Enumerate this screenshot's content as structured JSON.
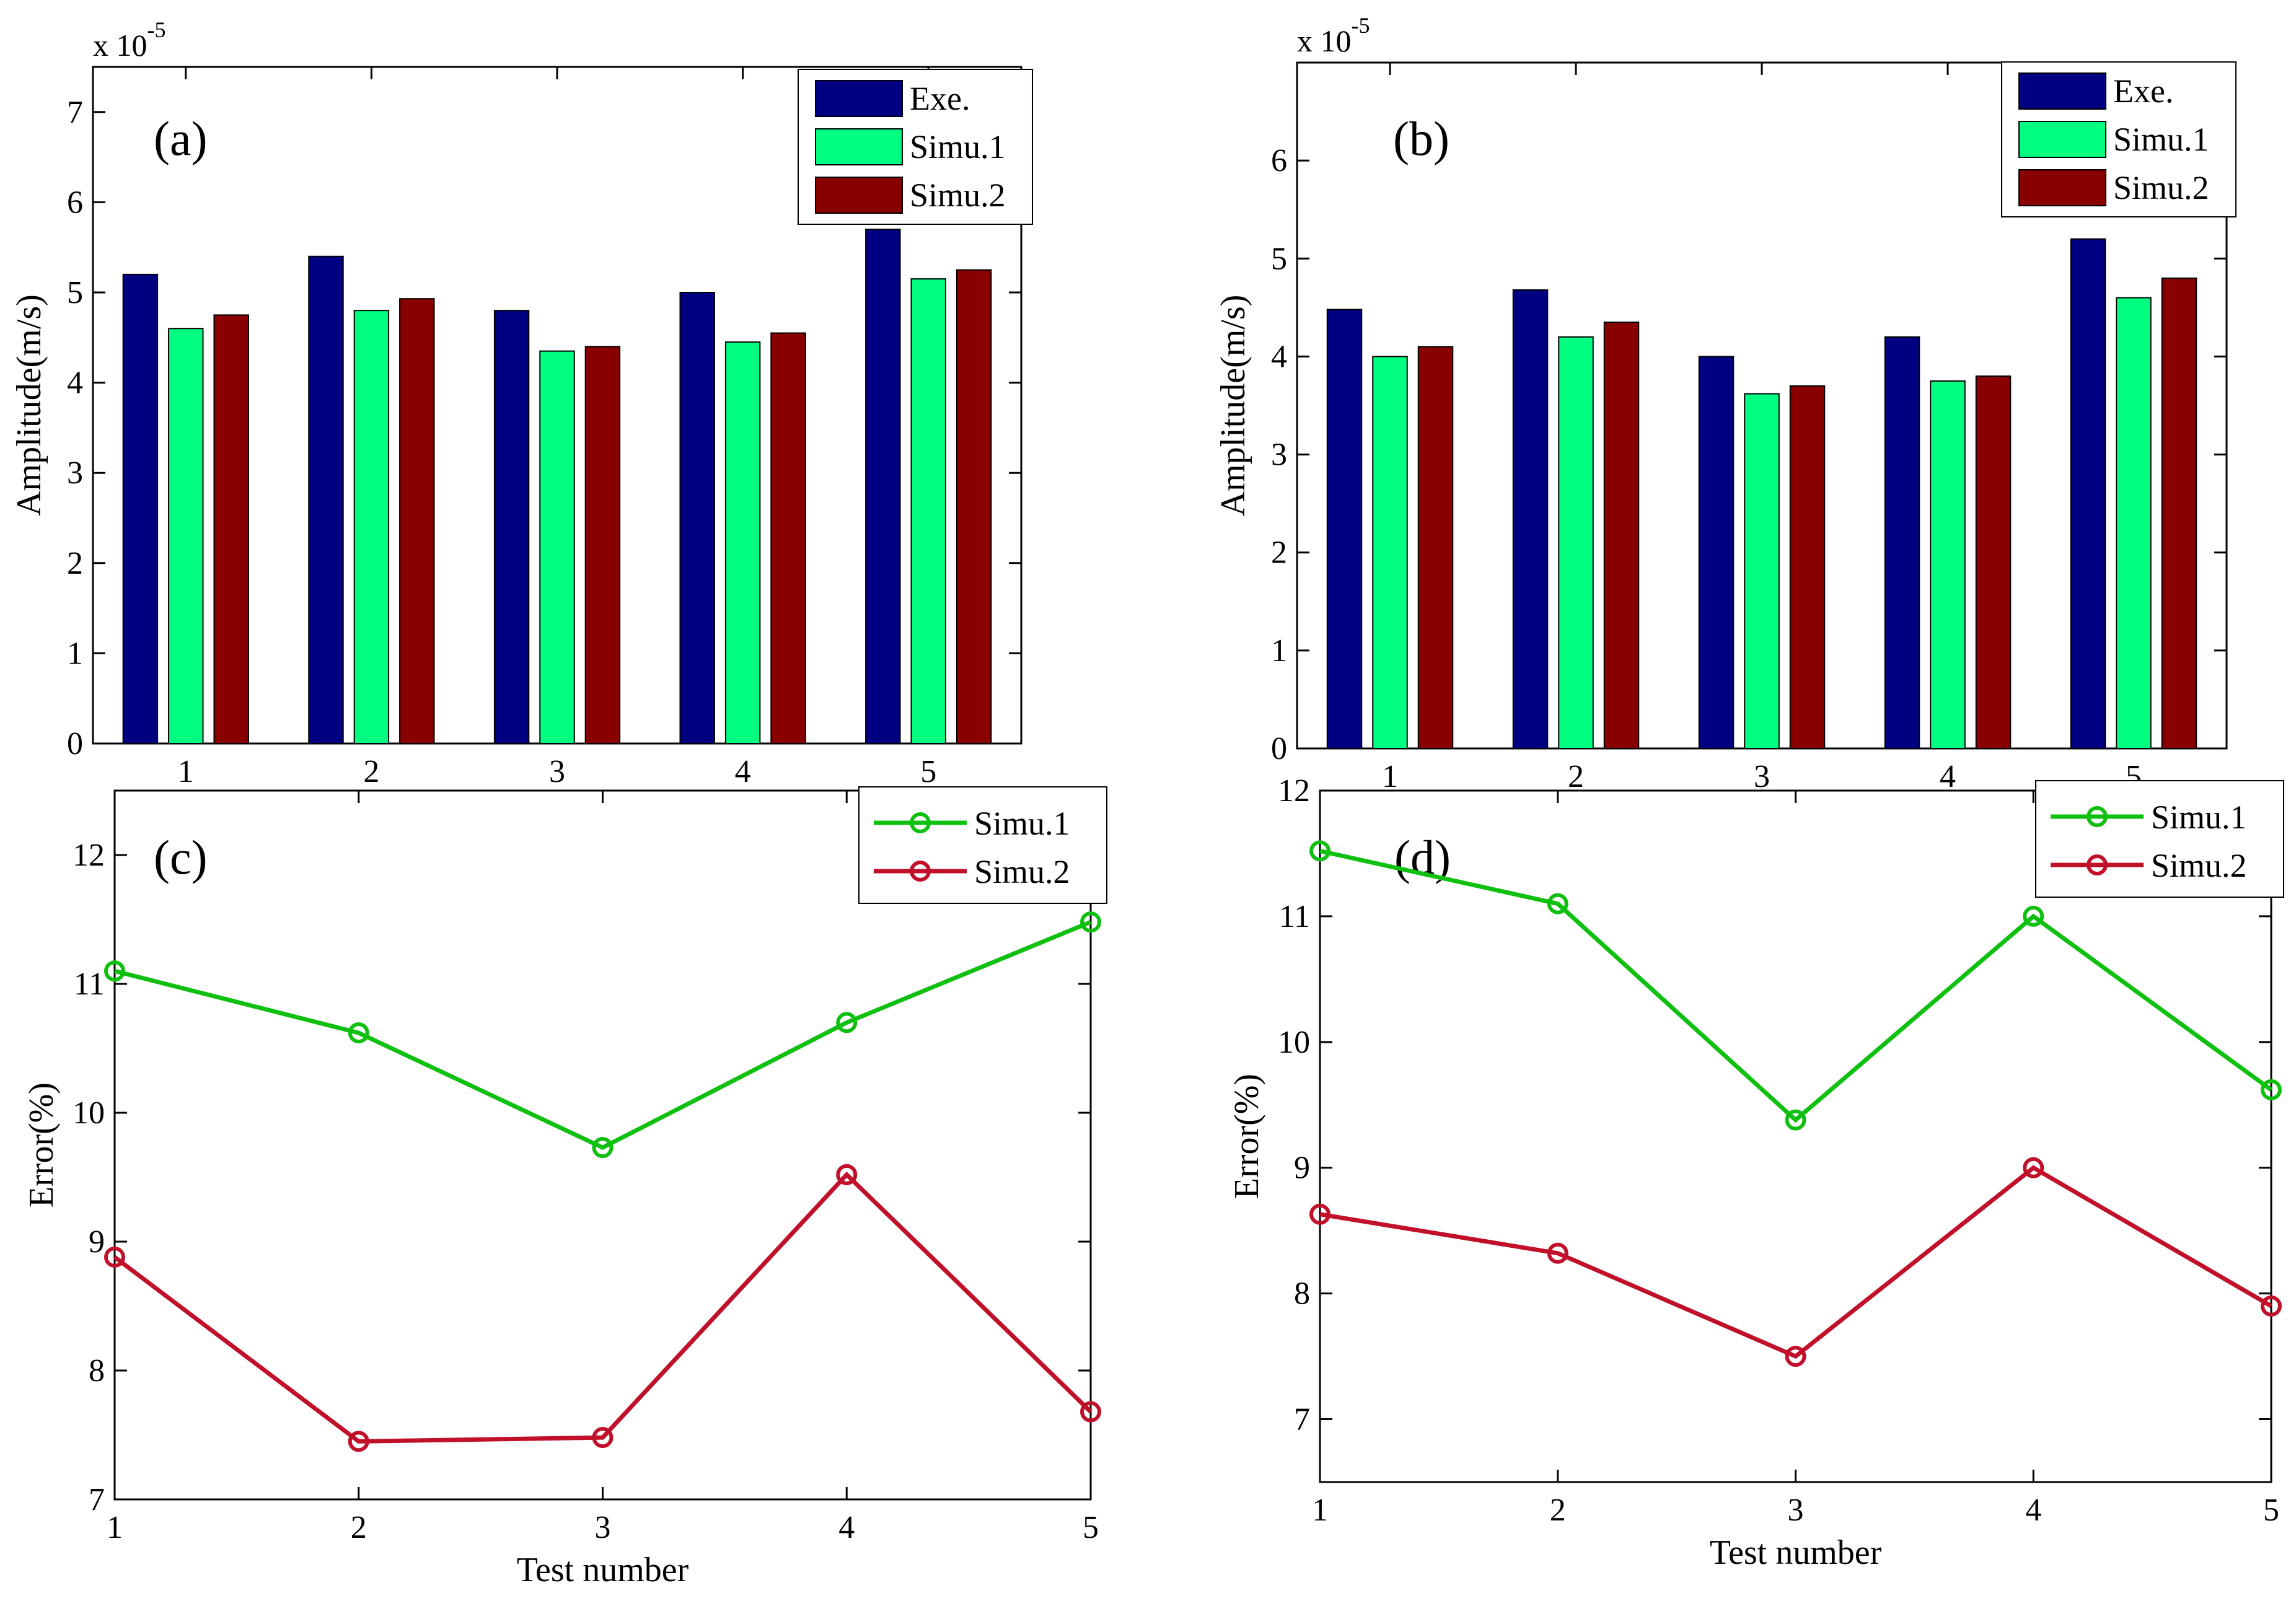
{
  "colors": {
    "exe": "#000080",
    "simu1_bar": "#00FF80",
    "simu2_bar": "#880000",
    "simu1_line": "#10C010",
    "simu2_line": "#C0102A"
  },
  "chart_data": [
    {
      "id": "a",
      "type": "bar",
      "panel_label": "(a)",
      "exponent_label": "x 10",
      "exponent_sup": "-5",
      "xlabel": "",
      "ylabel": "Amplitude(m/s)",
      "categories": [
        "1",
        "2",
        "3",
        "4",
        "5"
      ],
      "yticks": [
        "0",
        "1",
        "2",
        "3",
        "4",
        "5",
        "6",
        "7"
      ],
      "ylim": [
        0,
        7.5
      ],
      "legend_position": "top-right",
      "grid": false,
      "series": [
        {
          "name": "Exe.",
          "color": "#000080",
          "values": [
            5.2,
            5.4,
            4.8,
            5.0,
            5.7
          ]
        },
        {
          "name": "Simu.1",
          "color": "#00FF80",
          "values": [
            4.6,
            4.8,
            4.35,
            4.45,
            5.15
          ]
        },
        {
          "name": "Simu.2",
          "color": "#880000",
          "values": [
            4.75,
            4.93,
            4.4,
            4.55,
            5.25
          ]
        }
      ]
    },
    {
      "id": "b",
      "type": "bar",
      "panel_label": "(b)",
      "exponent_label": "x 10",
      "exponent_sup": "-5",
      "xlabel": "",
      "ylabel": "Amplitude(m/s)",
      "categories": [
        "1",
        "2",
        "3",
        "4",
        "5"
      ],
      "yticks": [
        "0",
        "1",
        "2",
        "3",
        "4",
        "5",
        "6"
      ],
      "ylim": [
        0,
        7
      ],
      "legend_position": "top-right",
      "grid": false,
      "series": [
        {
          "name": "Exe.",
          "color": "#000080",
          "values": [
            4.48,
            4.68,
            4.0,
            4.2,
            5.2
          ]
        },
        {
          "name": "Simu.1",
          "color": "#00FF80",
          "values": [
            4.0,
            4.2,
            3.62,
            3.75,
            4.6
          ]
        },
        {
          "name": "Simu.2",
          "color": "#880000",
          "values": [
            4.1,
            4.35,
            3.7,
            3.8,
            4.8
          ]
        }
      ]
    },
    {
      "id": "c",
      "type": "line",
      "panel_label": "(c)",
      "xlabel": "Test number",
      "ylabel": "Error(%)",
      "x": [
        1,
        2,
        3,
        4,
        5
      ],
      "xticks": [
        "1",
        "2",
        "3",
        "4",
        "5"
      ],
      "yticks": [
        "7",
        "8",
        "9",
        "10",
        "11",
        "12"
      ],
      "xlim": [
        1,
        5
      ],
      "ylim": [
        7,
        12.5
      ],
      "legend_position": "top-right",
      "grid": false,
      "series": [
        {
          "name": "Simu.1",
          "color": "#10C010",
          "values": [
            11.1,
            10.62,
            9.73,
            10.7,
            11.48
          ]
        },
        {
          "name": "Simu.2",
          "color": "#C0102A",
          "values": [
            8.88,
            7.45,
            7.48,
            9.52,
            7.68
          ]
        }
      ]
    },
    {
      "id": "d",
      "type": "line",
      "panel_label": "(d)",
      "xlabel": "Test number",
      "ylabel": "Error(%)",
      "x": [
        1,
        2,
        3,
        4,
        5
      ],
      "xticks": [
        "1",
        "2",
        "3",
        "4",
        "5"
      ],
      "yticks": [
        "7",
        "8",
        "9",
        "10",
        "11",
        "12"
      ],
      "xlim": [
        1,
        5
      ],
      "ylim": [
        6.5,
        12
      ],
      "legend_position": "top-right",
      "grid": false,
      "series": [
        {
          "name": "Simu.1",
          "color": "#10C010",
          "values": [
            11.52,
            11.1,
            9.38,
            11.0,
            9.62
          ]
        },
        {
          "name": "Simu.2",
          "color": "#C0102A",
          "values": [
            8.63,
            8.32,
            7.5,
            9.0,
            7.9
          ]
        }
      ]
    }
  ]
}
